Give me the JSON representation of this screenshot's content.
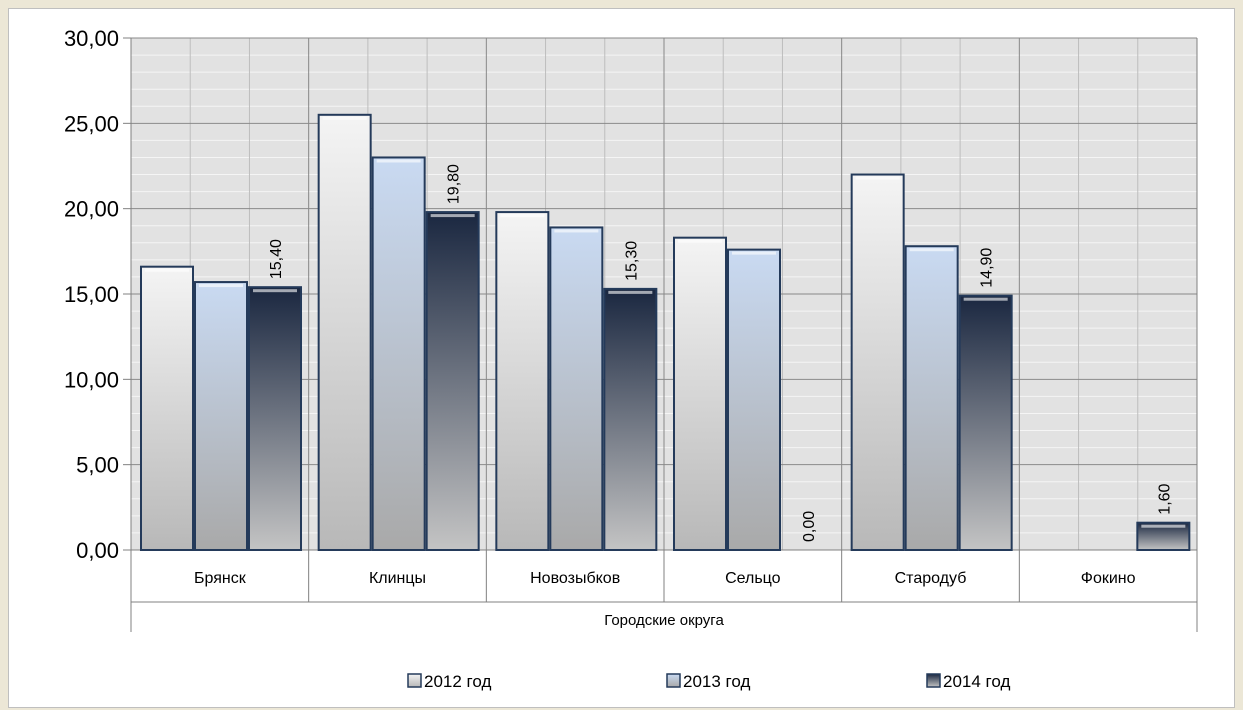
{
  "chart_data": {
    "type": "bar",
    "group_label": "Городские округа",
    "categories": [
      "Брянск",
      "Клинцы",
      "Новозыбков",
      "Сельцо",
      "Стародуб",
      "Фокино"
    ],
    "series": [
      {
        "name": "2012 год",
        "values": [
          16.6,
          25.5,
          19.8,
          18.3,
          22.0,
          0
        ]
      },
      {
        "name": "2013 год",
        "values": [
          15.7,
          23.0,
          18.9,
          17.6,
          17.8,
          0
        ]
      },
      {
        "name": "2014 год",
        "values": [
          15.4,
          19.8,
          15.3,
          0.0,
          14.9,
          1.6
        ]
      }
    ],
    "data_labels_series": "2014 год",
    "data_labels": [
      "15,40",
      "19,80",
      "15,30",
      "0,00",
      "14,90",
      "1,60"
    ],
    "y_ticks": [
      "0,00",
      "5,00",
      "10,00",
      "15,00",
      "20,00",
      "25,00",
      "30,00"
    ],
    "ylim": [
      0,
      30
    ],
    "grid": true,
    "legend_position": "bottom",
    "colors": {
      "s2012_light": "#f4f4f4",
      "s2012_dark": "#b8b8b8",
      "s2013_light": "#c9daf2",
      "s2013_dark": "#a9a9a9",
      "s2014_light": "#1a2740",
      "s2014_dark": "#c4c4c4",
      "bar_border": "#243a5a",
      "plot_bg": "#e2e2e2"
    }
  }
}
